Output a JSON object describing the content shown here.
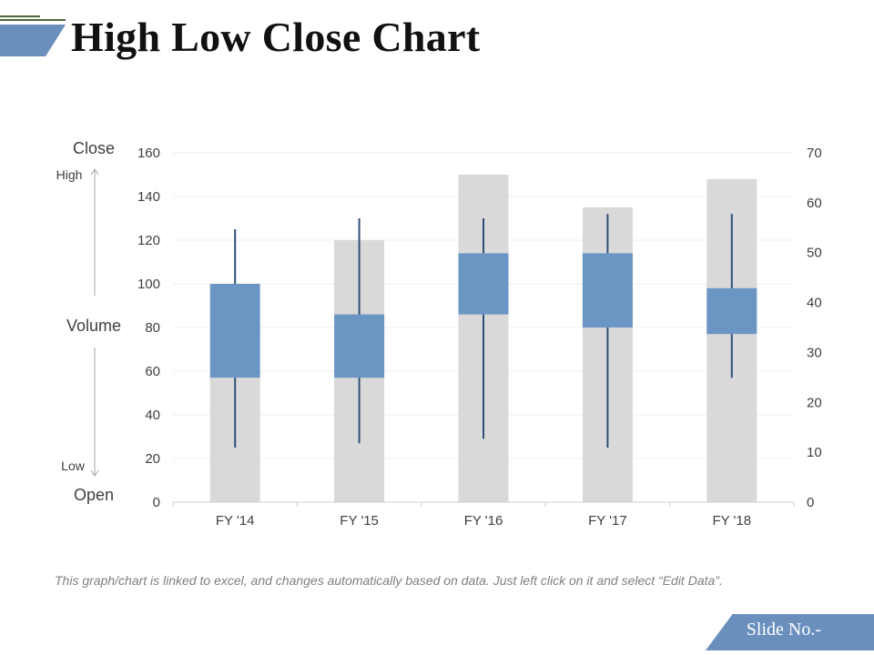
{
  "title": "High Low Close Chart",
  "footnote": "This graph/chart is linked to excel, and changes automatically based on data. Just left click on it and select “Edit Data”.",
  "slide_no": "Slide No.-",
  "axis_labels": {
    "close": "Close",
    "high": "High",
    "volume": "Volume",
    "low": "Low",
    "open": "Open"
  },
  "colors": {
    "header_bar": "#6b8fbd",
    "header_lines": "#4a6a3a",
    "volume_bar": "#d9d9d9",
    "box": "#6b96c4",
    "whisker": "#2e4f78",
    "grid": "#efefef",
    "axis": "#d0d0d0",
    "slide_no_bg": "#6b8fbd"
  },
  "chart_data": {
    "type": "stock-volume-open-high-low-close",
    "categories": [
      "FY '14",
      "FY '15",
      "FY '16",
      "FY '17",
      "FY '18"
    ],
    "volume": [
      57,
      120,
      150,
      135,
      148
    ],
    "open": [
      57,
      57,
      86,
      80,
      77
    ],
    "close": [
      100,
      86,
      114,
      114,
      98
    ],
    "high": [
      125,
      130,
      130,
      132,
      132
    ],
    "low": [
      25,
      27,
      29,
      25,
      57
    ],
    "y_left": {
      "min": 0,
      "max": 160,
      "ticks": [
        0,
        20,
        40,
        60,
        80,
        100,
        120,
        140,
        160
      ]
    },
    "y_right": {
      "min": 0,
      "max": 70,
      "ticks": [
        0,
        10,
        20,
        30,
        40,
        50,
        60,
        70
      ]
    },
    "grid": true
  }
}
